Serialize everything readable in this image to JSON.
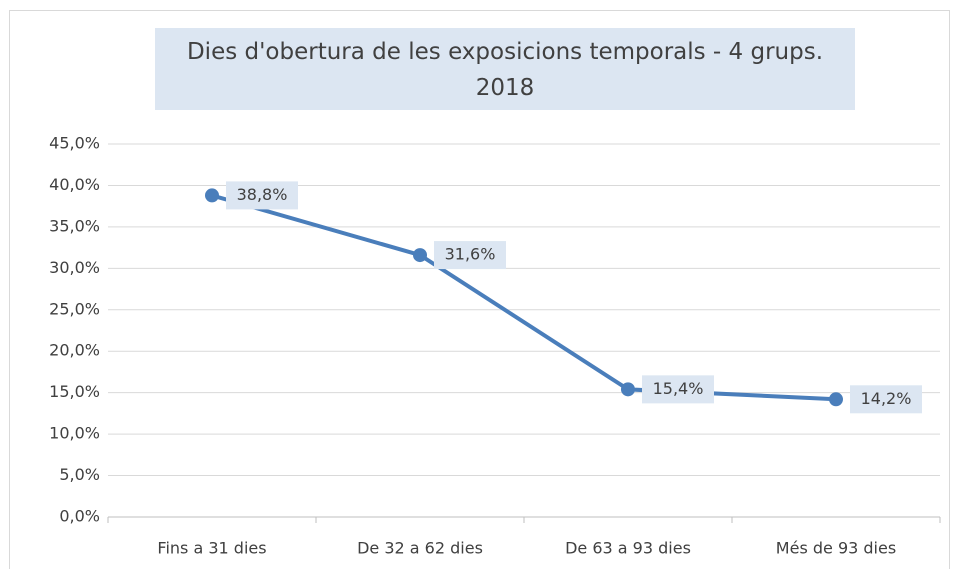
{
  "chart_data": {
    "type": "line",
    "title": "Dies d'obertura de les exposicions temporals - 4 grups. 2018",
    "categories": [
      "Fins a 31 dies",
      "De 32 a 62 dies",
      "De 63 a 93 dies",
      "Més de 93 dies"
    ],
    "series": [
      {
        "color": "#4a7ebb",
        "values": [
          38.8,
          31.6,
          15.4,
          14.2
        ],
        "value_labels": [
          "38,8%",
          "31,6%",
          "15,4%",
          "14,2%"
        ]
      }
    ],
    "ylim": [
      0,
      45
    ],
    "yticks": [
      {
        "value": 0,
        "label": "0,0%"
      },
      {
        "value": 5,
        "label": "5,0%"
      },
      {
        "value": 10,
        "label": "10,0%"
      },
      {
        "value": 15,
        "label": "15,0%"
      },
      {
        "value": 20,
        "label": "20,0%"
      },
      {
        "value": 25,
        "label": "25,0%"
      },
      {
        "value": 30,
        "label": "30,0%"
      },
      {
        "value": 35,
        "label": "35,0%"
      },
      {
        "value": 40,
        "label": "40,0%"
      },
      {
        "value": 45,
        "label": "45,0%"
      }
    ],
    "grid": true
  }
}
